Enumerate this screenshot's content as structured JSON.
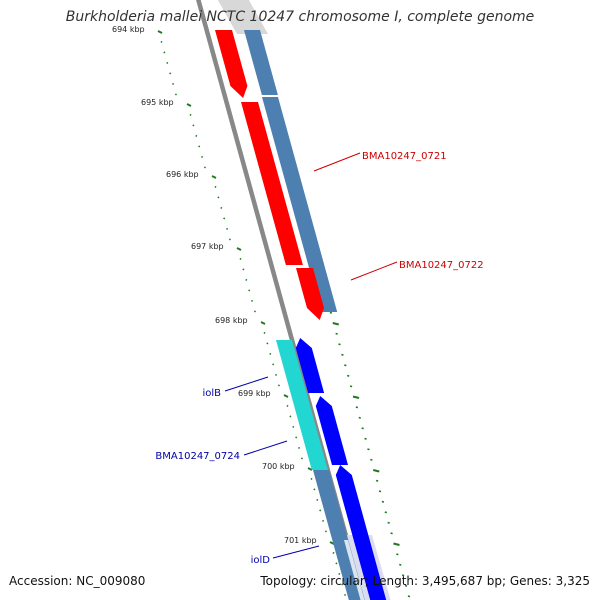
{
  "title": "Burkholderia mallei NCTC 10247 chromosome I, complete genome",
  "footer": {
    "accession": "Accession: NC_009080",
    "summary": "Topology: circular; Length: 3,495,687 bp; Genes: 3,325"
  },
  "colors": {
    "forward_cds": "#ff0000",
    "reverse_cds": "#0000ff",
    "forward_gene": "#4d7fb0",
    "reverse_gene": "#22d6d2",
    "backbone": "#888888",
    "tick": "#1f7a1f",
    "forward_label": "#cc0000",
    "reverse_label": "#0000aa"
  },
  "scale": {
    "labels": [
      "694 kbp",
      "695 kbp",
      "696 kbp",
      "697 kbp",
      "698 kbp",
      "699 kbp",
      "700 kbp",
      "701 kbp"
    ]
  },
  "features": [
    {
      "label": "BMA10247_0721",
      "strand": "forward"
    },
    {
      "label": "BMA10247_0722",
      "strand": "forward"
    },
    {
      "label": "iolB",
      "strand": "reverse"
    },
    {
      "label": "BMA10247_0724",
      "strand": "reverse"
    },
    {
      "label": "iolD",
      "strand": "reverse"
    }
  ]
}
